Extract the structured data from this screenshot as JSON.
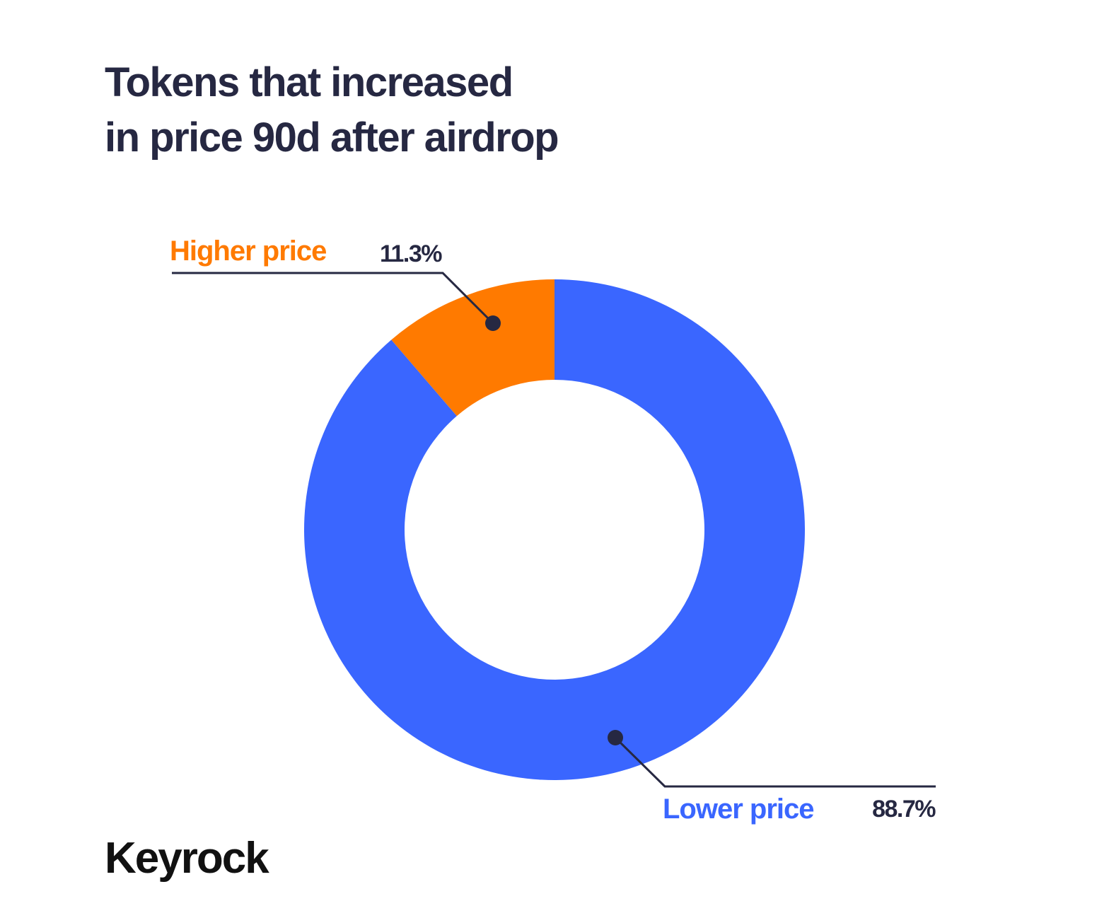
{
  "title": {
    "line1": "Tokens that increased",
    "line2": "in price 90d after airdrop"
  },
  "colors": {
    "text": "#262842",
    "higher": "#FF7A00",
    "lower": "#3A66FF",
    "leader": "#262842"
  },
  "chart_data": {
    "type": "pie",
    "style": "donut",
    "title": "Tokens that increased in price 90d after airdrop",
    "slices": [
      {
        "label": "Higher price",
        "value": 11.3,
        "display": "11.3%",
        "color": "#FF7A00"
      },
      {
        "label": "Lower price",
        "value": 88.7,
        "display": "88.7%",
        "color": "#3A66FF"
      }
    ]
  },
  "brand": {
    "logo_text": "Keyrock"
  }
}
